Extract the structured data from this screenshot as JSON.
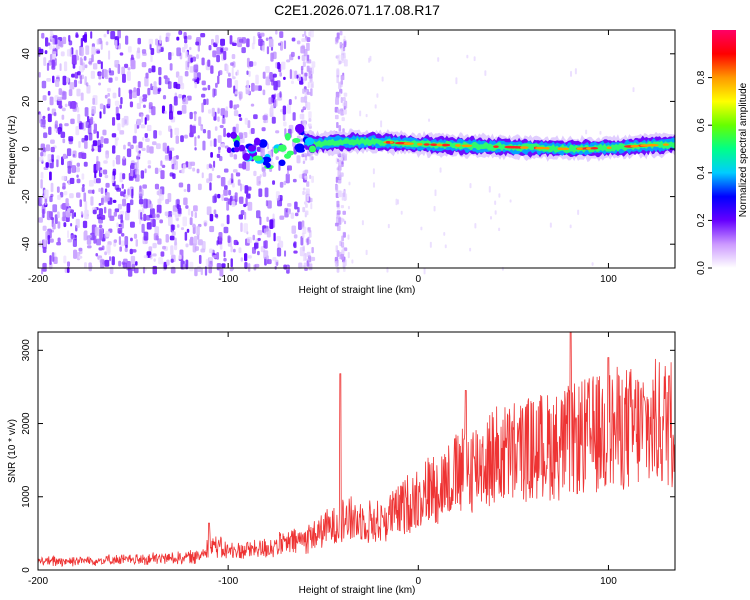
{
  "title": "C2E1.2026.071.17.08.R17",
  "chart_data": [
    {
      "type": "heatmap",
      "xlabel": "Height of straight line (km)",
      "ylabel": "Frequency (Hz)",
      "xlim": [
        -200,
        135
      ],
      "ylim": [
        -50,
        50
      ],
      "xticks": [
        -200,
        -100,
        0,
        100
      ],
      "xtick_labels": [
        "-200",
        "-100",
        "0",
        "100"
      ],
      "yticks": [
        -40,
        -20,
        0,
        20,
        40
      ],
      "ytick_labels": [
        "-40",
        "-20",
        "0",
        "20",
        "40"
      ],
      "colorbar": {
        "label": "Normalized spectral amplitude",
        "range": [
          0,
          1
        ],
        "ticks": [
          0.0,
          0.2,
          0.4,
          0.6,
          0.8
        ],
        "tick_labels": [
          "0.0",
          "0.2",
          "0.4",
          "0.6",
          "0.8"
        ],
        "colors": [
          "#ffffff",
          "#cc99ff",
          "#6600ff",
          "#0000ff",
          "#00ccff",
          "#00ff88",
          "#66ff00",
          "#ffff00",
          "#ff9900",
          "#ff0000",
          "#ff0066"
        ]
      },
      "signal_track": [
        {
          "x": -95,
          "f": 3
        },
        {
          "x": -85,
          "f": -1
        },
        {
          "x": -75,
          "f": -4
        },
        {
          "x": -65,
          "f": 5
        },
        {
          "x": -55,
          "f": 2
        },
        {
          "x": -40,
          "f": 3
        },
        {
          "x": -20,
          "f": 3
        },
        {
          "x": 0,
          "f": 2
        },
        {
          "x": 20,
          "f": 1.5
        },
        {
          "x": 40,
          "f": 1
        },
        {
          "x": 60,
          "f": 0.5
        },
        {
          "x": 80,
          "f": 0
        },
        {
          "x": 100,
          "f": 0.5
        },
        {
          "x": 120,
          "f": 1.5
        },
        {
          "x": 135,
          "f": 2
        }
      ],
      "noise_region_x": [
        -200,
        -60
      ],
      "noise_bands_x": [
        -62,
        -40
      ]
    },
    {
      "type": "line",
      "xlabel": "Height of straight line (km)",
      "ylabel": "SNR (10 * v/v)",
      "xlim": [
        -200,
        135
      ],
      "ylim": [
        0,
        3250
      ],
      "xticks": [
        -200,
        -100,
        0,
        100
      ],
      "xtick_labels": [
        "-200",
        "-100",
        "0",
        "100"
      ],
      "yticks": [
        0,
        1000,
        2000,
        3000
      ],
      "ytick_labels": [
        "0",
        "1000",
        "2000",
        "3000"
      ],
      "color": "#ee3333",
      "trend": {
        "x": [
          -200,
          -150,
          -115,
          -110,
          -100,
          -80,
          -60,
          -45,
          -40,
          -20,
          0,
          20,
          40,
          60,
          80,
          100,
          120,
          135
        ],
        "y": [
          120,
          140,
          180,
          380,
          250,
          300,
          420,
          600,
          700,
          650,
          1000,
          1300,
          1550,
          1650,
          1750,
          1900,
          1950,
          2050
        ]
      },
      "spikes": [
        {
          "x": -110,
          "y": 640
        },
        {
          "x": -41,
          "y": 2680
        },
        {
          "x": 25,
          "y": 2450
        },
        {
          "x": 80,
          "y": 3250
        },
        {
          "x": 100,
          "y": 2900
        },
        {
          "x": 132,
          "y": 2650
        }
      ]
    }
  ]
}
